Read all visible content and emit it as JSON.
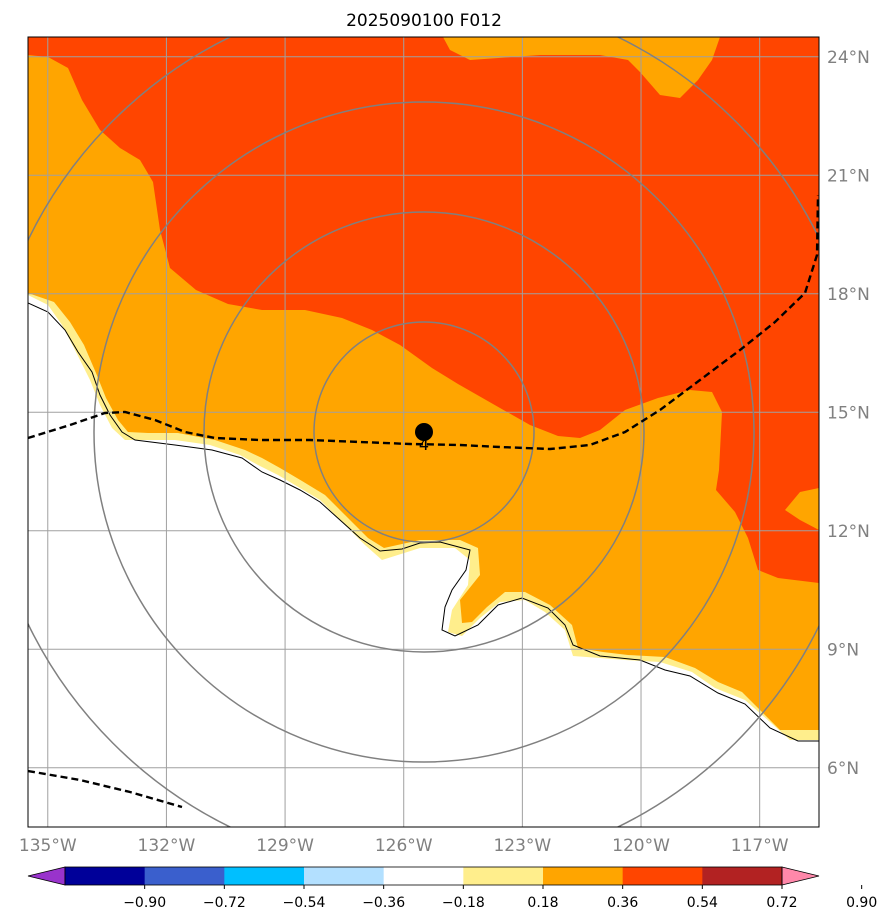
{
  "title": "2025090100 F012",
  "map": {
    "lon_range": [
      -135.5,
      -115.5
    ],
    "lat_range": [
      4.5,
      24.5
    ],
    "lon_ticks": [
      "135°W",
      "132°W",
      "129°W",
      "126°W",
      "123°W",
      "120°W",
      "117°W"
    ],
    "lat_ticks": [
      "24°N",
      "21°N",
      "18°N",
      "15°N",
      "12°N",
      "9°N",
      "6°N"
    ],
    "center_marker": {
      "lon": -125.5,
      "lat": 14.5,
      "label": "4"
    },
    "range_rings": 4,
    "grid": true
  },
  "colorbar": {
    "labels": [
      "−0.90",
      "−0.72",
      "−0.54",
      "−0.36",
      "−0.18",
      "0.18",
      "0.36",
      "0.54",
      "0.72",
      "0.90"
    ],
    "colors": [
      "#9933cc",
      "#000099",
      "#3a5fcd",
      "#00bfff",
      "#b3e0ff",
      "#ffffff",
      "#ffee8c",
      "#ffa500",
      "#ff4500",
      "#b22222",
      "#ff88aa"
    ],
    "extend": "both"
  },
  "colors": {
    "field_low": "#ffee8c",
    "field_mid": "#ffa500",
    "field_high": "#ff4500",
    "grid": "#a0a0a0",
    "rings": "#808080",
    "coast": "#000000",
    "track": "#000000"
  }
}
